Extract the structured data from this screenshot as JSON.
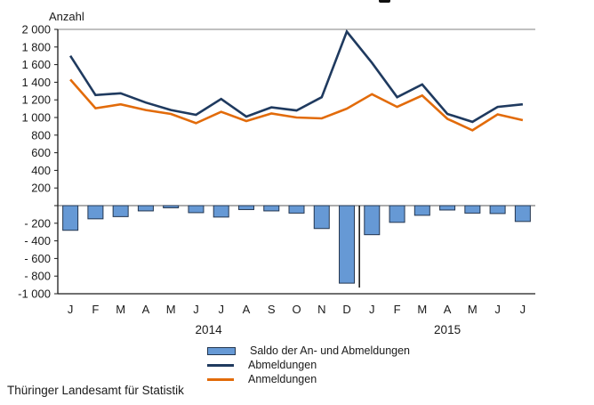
{
  "chart_data": {
    "type": "combo-bar-line",
    "ylabel": "Anzahl",
    "ylim": [
      -1000,
      2000
    ],
    "ytick_step": 200,
    "ytick_labels": [
      "2 000",
      "1 800",
      "1 600",
      "1 400",
      "1 200",
      "1 000",
      "800",
      "600",
      "400",
      "200",
      "",
      "- 200",
      "- 400",
      "- 600",
      "- 800",
      "-1 000"
    ],
    "categories": [
      "J",
      "F",
      "M",
      "A",
      "M",
      "J",
      "J",
      "A",
      "S",
      "O",
      "N",
      "D",
      "J",
      "F",
      "M",
      "A",
      "M",
      "J",
      "J"
    ],
    "year_groups": [
      {
        "label": "2014",
        "span": [
          0,
          11
        ]
      },
      {
        "label": "2015",
        "span": [
          12,
          18
        ]
      }
    ],
    "separator_after_index": 11,
    "grid": {
      "top_line_at": 2000,
      "zero_line": true,
      "legend_position": "bottom"
    },
    "series": [
      {
        "name": "Saldo der An- und Abmeldungen",
        "type": "bar",
        "color": "#6699d5",
        "border_color": "#24364f",
        "values": [
          -280,
          -150,
          -125,
          -60,
          -25,
          -80,
          -130,
          -45,
          -60,
          -85,
          -260,
          -880,
          -330,
          -190,
          -110,
          -50,
          -85,
          -90,
          -180
        ]
      },
      {
        "name": "Abmeldungen",
        "type": "line",
        "color": "#1f3a5f",
        "values": [
          1700,
          1255,
          1275,
          1170,
          1085,
          1030,
          1210,
          1010,
          1115,
          1080,
          1230,
          1975,
          1620,
          1230,
          1375,
          1040,
          950,
          1120,
          1150
        ]
      },
      {
        "name": "Anmeldungen",
        "type": "line",
        "color": "#e26b0a",
        "values": [
          1430,
          1105,
          1150,
          1085,
          1040,
          935,
          1065,
          960,
          1045,
          1000,
          990,
          1100,
          1265,
          1120,
          1250,
          985,
          855,
          1035,
          970
        ]
      }
    ],
    "axis_colors": {
      "axis": "#1a1a1a",
      "top_gridline": "#808080",
      "zero_line": "#595959",
      "separator": "#111111"
    }
  },
  "footer": {
    "source": "Thüringer Landesamt für Statistik"
  }
}
